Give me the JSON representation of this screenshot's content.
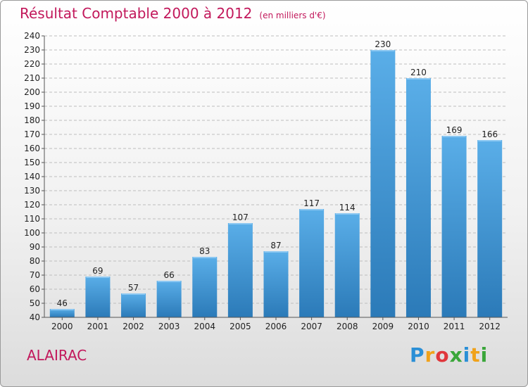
{
  "header": {
    "title": "Résultat Comptable 2000 à 2012",
    "unit": "(en milliers d'€)"
  },
  "footer": {
    "commune": "ALAIRAC",
    "logo_letters": [
      "P",
      "r",
      "o",
      "x",
      "i",
      "t",
      "i"
    ],
    "logo_colors": [
      "#2a8fd6",
      "#f0a21a",
      "#e0363b",
      "#3aa63a",
      "#2a8fd6",
      "#f0a21a",
      "#3aa63a"
    ]
  },
  "chart_data": {
    "type": "bar",
    "categories": [
      "2000",
      "2001",
      "2002",
      "2003",
      "2004",
      "2005",
      "2006",
      "2007",
      "2008",
      "2009",
      "2010",
      "2011",
      "2012"
    ],
    "values": [
      46,
      69,
      57,
      66,
      83,
      107,
      87,
      117,
      114,
      230,
      210,
      169,
      166
    ],
    "ylim": [
      40,
      240
    ],
    "yticks": [
      40,
      50,
      60,
      70,
      80,
      90,
      100,
      110,
      120,
      130,
      140,
      150,
      160,
      170,
      180,
      190,
      200,
      210,
      220,
      230,
      240
    ],
    "grid": true,
    "colors": {
      "bar_top": "#5aaee8",
      "bar_bottom": "#2b7ab8",
      "grid": "#bdbdbd"
    }
  }
}
